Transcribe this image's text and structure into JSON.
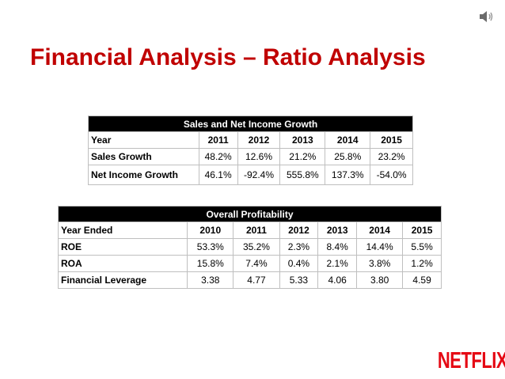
{
  "slide": {
    "title": "Financial Analysis – Ratio Analysis"
  },
  "table1": {
    "heading": "Sales and Net Income Growth",
    "year_label": "Year",
    "years": [
      "2011",
      "2012",
      "2013",
      "2014",
      "2015"
    ],
    "rows": [
      {
        "label": "Sales Growth",
        "values": [
          "48.2%",
          "12.6%",
          "21.2%",
          "25.8%",
          "23.2%"
        ]
      },
      {
        "label": "Net Income Growth",
        "values": [
          "46.1%",
          "-92.4%",
          "555.8%",
          "137.3%",
          "-54.0%"
        ]
      }
    ]
  },
  "table2": {
    "heading": "Overall Profitability",
    "year_label": "Year Ended",
    "years": [
      "2010",
      "2011",
      "2012",
      "2013",
      "2014",
      "2015"
    ],
    "rows": [
      {
        "label": "ROE",
        "values": [
          "53.3%",
          "35.2%",
          "2.3%",
          "8.4%",
          "14.4%",
          "5.5%"
        ]
      },
      {
        "label": "ROA",
        "values": [
          "15.8%",
          "7.4%",
          "0.4%",
          "2.1%",
          "3.8%",
          "1.2%"
        ]
      },
      {
        "label": "Financial Leverage",
        "values": [
          "3.38",
          "4.77",
          "5.33",
          "4.06",
          "3.80",
          "4.59"
        ]
      }
    ]
  },
  "logo": {
    "text": "NETFLIX",
    "color": "#e50914"
  },
  "icons": {
    "speaker": "speaker-icon"
  }
}
